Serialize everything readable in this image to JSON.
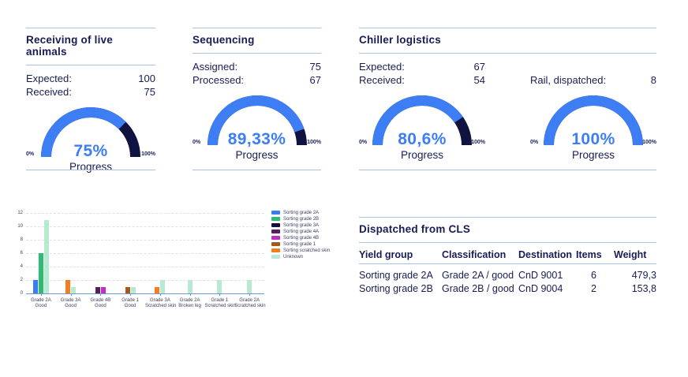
{
  "colors": {
    "accent_blue": "#3D7EF4",
    "navy": "#171D54",
    "gauge_track": "#101240",
    "hairline": "#A9C1E2",
    "axis_blue": "#6E96D8",
    "gridline": "#DCE0EA",
    "tick_text": "#3C4166"
  },
  "panels": [
    {
      "title": "Receiving of live animals",
      "stats": [
        {
          "label": "Expected:",
          "value": "100"
        },
        {
          "label": "Received:",
          "value": "75"
        }
      ],
      "gauge": {
        "value": 75,
        "display": "75%",
        "caption": "Progress",
        "min_label": "0%",
        "max_label": "100%"
      }
    },
    {
      "title": "Sequencing",
      "stats": [
        {
          "label": "Assigned:",
          "value": "75"
        },
        {
          "label": "Processed:",
          "value": "67"
        }
      ],
      "gauge": {
        "value": 89.33,
        "display": "89,33%",
        "caption": "Progress",
        "min_label": "0%",
        "max_label": "100%"
      }
    },
    {
      "title": "Chiller logistics",
      "sections": [
        {
          "stats": [
            {
              "label": "Expected:",
              "value": "67"
            },
            {
              "label": "Received:",
              "value": "54"
            }
          ],
          "gauge": {
            "value": 80.6,
            "display": "80,6%",
            "caption": "Progress",
            "min_label": "0%",
            "max_label": "100%"
          }
        },
        {
          "stats": [
            {
              "label": "Rail, dispatched:",
              "value": "8"
            }
          ],
          "gauge": {
            "value": 100,
            "display": "100%",
            "caption": "Progress",
            "min_label": "0%",
            "max_label": "100%"
          }
        }
      ]
    }
  ],
  "chart_data": [
    {
      "type": "bar",
      "title": "",
      "categories": [
        [
          "Grade 2A",
          "Good"
        ],
        [
          "Grade 3A",
          "Good"
        ],
        [
          "Grade 4B",
          "Good"
        ],
        [
          "Grade 1",
          "Good"
        ],
        [
          "Grade 3A",
          "Scratched skin"
        ],
        [
          "Grade 2A",
          "Broken leg"
        ],
        [
          "Grade 1",
          "Scratched skin"
        ],
        [
          "Grade 2A",
          "Scratched skin"
        ]
      ],
      "series": [
        {
          "name": "Sorting grade 2A",
          "color": "#3B7DF0",
          "values": [
            2,
            0,
            0,
            0,
            0,
            0,
            0,
            0
          ]
        },
        {
          "name": "Sorting grade 2B",
          "color": "#2BBE71",
          "values": [
            6,
            0,
            0,
            0,
            0,
            0,
            0,
            0
          ]
        },
        {
          "name": "Sorting grade 3A",
          "color": "#101240",
          "values": [
            0,
            0,
            0,
            0,
            0,
            0,
            0,
            0
          ]
        },
        {
          "name": "Sorting grade 4A",
          "color": "#5A1C5E",
          "values": [
            0,
            0,
            1,
            0,
            0,
            0,
            0,
            0
          ]
        },
        {
          "name": "Sorting grade 4B",
          "color": "#BE2FC4",
          "values": [
            0,
            0,
            1,
            0,
            0,
            0,
            0,
            0
          ]
        },
        {
          "name": "Sorting grade 1",
          "color": "#A4591E",
          "values": [
            0,
            0,
            0,
            1,
            0,
            0,
            0,
            0
          ]
        },
        {
          "name": "Sorting scratched skin",
          "color": "#F57D20",
          "values": [
            0,
            2,
            0,
            0,
            1,
            0,
            0,
            0
          ]
        },
        {
          "name": "Unknown",
          "color": "#B7EBD1",
          "values": [
            11,
            1,
            0,
            1,
            2,
            2,
            2,
            2
          ]
        }
      ],
      "xlabel": "",
      "ylabel": "",
      "ylim": [
        0,
        12
      ],
      "yticks": [
        0,
        2,
        4,
        6,
        8,
        10,
        12
      ],
      "grid": true,
      "legend_position": "right"
    },
    {
      "type": "gauge",
      "gauges": [
        {
          "panel": "Receiving of live animals",
          "percent": 75,
          "display": "75%"
        },
        {
          "panel": "Sequencing",
          "percent": 89.33,
          "display": "89,33%"
        },
        {
          "panel": "Chiller logistics",
          "percent": 80.6,
          "display": "80,6%"
        },
        {
          "panel": "Chiller logistics rail",
          "percent": 100,
          "display": "100%"
        }
      ]
    }
  ],
  "table": {
    "title": "Dispatched from CLS",
    "columns": [
      "Yield group",
      "Classification",
      "Destination",
      "Items",
      "Weight"
    ],
    "rows": [
      [
        "Sorting grade 2A",
        "Grade 2A / good",
        "CnD 9001",
        "6",
        "479,3"
      ],
      [
        "Sorting grade 2B",
        "Grade 2B / good",
        "CnD 9004",
        "2",
        "153,8"
      ]
    ]
  }
}
